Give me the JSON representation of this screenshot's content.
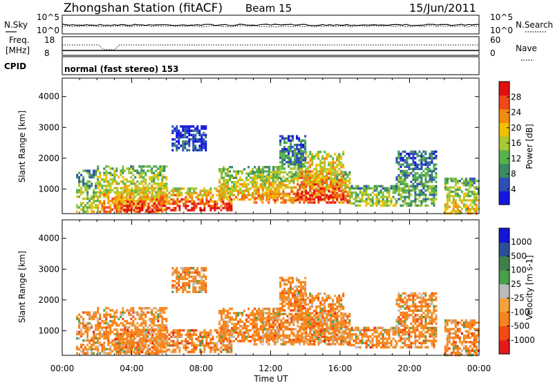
{
  "header": {
    "station": "Zhongshan Station (fitACF)",
    "beam": "Beam 15",
    "date": "15/Jun/2011"
  },
  "noise_panel": {
    "left_label": "N.Sky",
    "right_label": "N.Search",
    "left_ticks": [
      "10^5",
      "10^0"
    ],
    "right_ticks": [
      "10^5",
      "10^0"
    ]
  },
  "freq_panel": {
    "left_label_1": "Freq.",
    "left_label_2": "[MHz]",
    "left_ticks": [
      "18",
      "8"
    ],
    "right_label": "Nave",
    "right_ticks": [
      "60",
      "0"
    ]
  },
  "cpid": {
    "label": "CPID",
    "text": "normal (fast stereo) 153"
  },
  "x_axis": {
    "label": "Time UT",
    "ticks": [
      "00:00",
      "04:00",
      "08:00",
      "12:00",
      "16:00",
      "20:00",
      "00:00"
    ]
  },
  "colors": {
    "power": [
      "#1515e0",
      "#2e4fb8",
      "#3b8a64",
      "#55b24a",
      "#a6c832",
      "#f0c000",
      "#f28a10",
      "#f04818",
      "#e01010"
    ],
    "velocity": [
      "#e41a1a",
      "#f24a10",
      "#f5841a",
      "#f5a23a",
      "#bbbbbb",
      "#48a04a",
      "#3f7f4c",
      "#2d4f9a",
      "#1515d8"
    ],
    "noise_line": "#000000"
  },
  "chart_data": [
    {
      "type": "heatmap",
      "name": "power",
      "ylabel": "Slant Range [km]",
      "xlabel": "",
      "yticks": [
        1000,
        2000,
        3000,
        4000
      ],
      "ylim": [
        200,
        4600
      ],
      "xlim_hours": [
        0,
        24
      ],
      "colorbar_label": "Power [dB]",
      "colorbar_ticks": [
        "4",
        "8",
        "12",
        "16",
        "20",
        "24",
        "28"
      ],
      "colorbar_range": [
        0,
        32
      ]
    },
    {
      "type": "heatmap",
      "name": "velocity",
      "ylabel": "Slant Range [km]",
      "xlabel": "Time UT",
      "yticks": [
        1000,
        2000,
        3000,
        4000
      ],
      "ylim": [
        200,
        4600
      ],
      "xlim_hours": [
        0,
        24
      ],
      "colorbar_label": "Velocity [m s-1]",
      "colorbar_ticks": [
        "-1000",
        "-500",
        "-100",
        "-25",
        "25",
        "100",
        "500",
        "1000"
      ],
      "colorbar_range": [
        -1000,
        1000
      ]
    }
  ],
  "scatter_regions": [
    {
      "t0": 0.8,
      "t1": 2.0,
      "r0": 300,
      "r1": 1700,
      "level": 0.55
    },
    {
      "t0": 2.0,
      "t1": 6.0,
      "r0": 300,
      "r1": 1800,
      "level": 0.75
    },
    {
      "t0": 3.0,
      "t1": 9.8,
      "r0": 350,
      "r1": 1100,
      "level": 0.95
    },
    {
      "t0": 9.0,
      "t1": 12.5,
      "r0": 700,
      "r1": 1800,
      "level": 0.7
    },
    {
      "t0": 11.0,
      "t1": 16.5,
      "r0": 600,
      "r1": 1600,
      "level": 0.8
    },
    {
      "t0": 13.5,
      "t1": 16.2,
      "r0": 700,
      "r1": 2300,
      "level": 0.9
    },
    {
      "t0": 16.5,
      "t1": 19.2,
      "r0": 500,
      "r1": 1200,
      "level": 0.55
    },
    {
      "t0": 6.3,
      "t1": 8.3,
      "r0": 2300,
      "r1": 3100,
      "level": 0.15
    },
    {
      "t0": 12.5,
      "t1": 14.0,
      "r0": 1700,
      "r1": 2800,
      "level": 0.35
    },
    {
      "t0": 19.2,
      "t1": 21.5,
      "r0": 500,
      "r1": 2300,
      "level": 0.4
    },
    {
      "t0": 22.0,
      "t1": 24.0,
      "r0": 250,
      "r1": 1400,
      "level": 0.65
    }
  ]
}
